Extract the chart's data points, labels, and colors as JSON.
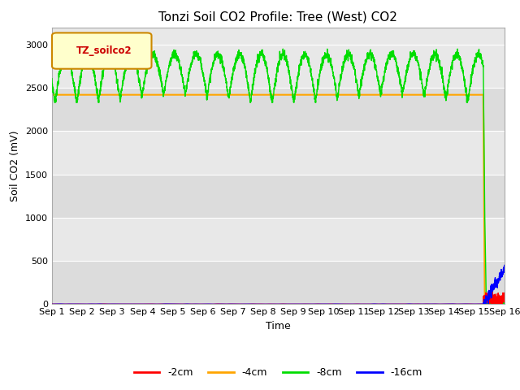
{
  "title": "Tonzi Soil CO2 Profile: Tree (West) CO2",
  "ylabel": "Soil CO2 (mV)",
  "xlabel": "Time",
  "legend_label": "TZ_soilco2",
  "ylim": [
    0,
    3200
  ],
  "yticks": [
    0,
    500,
    1000,
    1500,
    2000,
    2500,
    3000
  ],
  "xlim_days": [
    0,
    15
  ],
  "xtick_labels": [
    "Sep 1",
    "Sep 2",
    "Sep 3",
    "Sep 4",
    "Sep 5",
    "Sep 6",
    "Sep 7",
    "Sep 8",
    "Sep 9",
    "Sep 10",
    "Sep 11",
    "Sep 12",
    "Sep 13",
    "Sep 14",
    "Sep 15",
    "Sep 16"
  ],
  "colors": {
    "2cm": "#ff0000",
    "4cm": "#ffa500",
    "8cm": "#00dd00",
    "16cm": "#0000ff"
  },
  "background_color": "#e8e8e8",
  "band_colors": [
    "#dcdcdc",
    "#e8e8e8"
  ],
  "title_fontsize": 11,
  "axis_label_fontsize": 9,
  "tick_fontsize": 8,
  "orange_level": 2420,
  "green_base": 2800,
  "green_min": 2350,
  "green_max": 2900,
  "drop_day": 14.3,
  "end_day": 15.0
}
